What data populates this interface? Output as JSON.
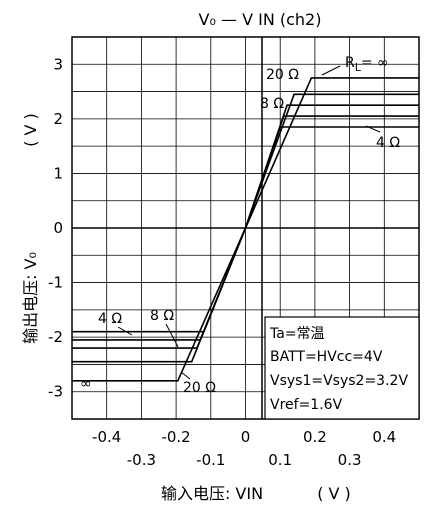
{
  "chart_data": {
    "type": "line",
    "title": "V₀ — V IN (ch2)",
    "xlabel": "输入电压: VIN",
    "xunit": "( V )",
    "ylabel": "输出电压: V₀",
    "yunit": "( V )",
    "xlim": [
      -0.5,
      0.5
    ],
    "ylim": [
      -3.5,
      3.5
    ],
    "grid": true,
    "x_ticks_upper": [
      "-0.4",
      "-0.2",
      "0",
      "0.2",
      "0.4"
    ],
    "x_ticks_lower": [
      "-0.3",
      "-0.1",
      "0.1",
      "0.3"
    ],
    "y_ticks": [
      "3",
      "2",
      "1",
      "0",
      "-1",
      "-2",
      "-3"
    ],
    "series": [
      {
        "name": "R_L = ∞",
        "x": [
          -0.5,
          -0.195,
          0.0,
          0.19,
          0.5
        ],
        "y": [
          -2.8,
          -2.8,
          0.0,
          2.75,
          2.75
        ]
      },
      {
        "name": "20 Ω",
        "x": [
          -0.5,
          -0.155,
          0.0,
          0.14,
          0.5
        ],
        "y": [
          -2.45,
          -2.45,
          0.0,
          2.45,
          2.45
        ]
      },
      {
        "name": "8 Ω",
        "x": [
          -0.5,
          -0.14,
          0.0,
          0.12,
          0.5
        ],
        "y": [
          -2.2,
          -2.2,
          0.0,
          2.25,
          2.25
        ]
      },
      {
        "name": "",
        "x": [
          -0.5,
          -0.13,
          0.0,
          0.11,
          0.5
        ],
        "y": [
          -2.05,
          -2.05,
          0.0,
          2.05,
          2.05
        ]
      },
      {
        "name": "4 Ω",
        "x": [
          -0.5,
          -0.12,
          0.0,
          0.1,
          0.5
        ],
        "y": [
          -1.9,
          -1.9,
          0.0,
          1.85,
          1.85
        ]
      }
    ],
    "annotations": {
      "rl": "R",
      "rl_sub": "L",
      "rl_eq": "= ∞",
      "upper_20": "20 Ω",
      "upper_8": "8 Ω",
      "upper_4": "4 Ω",
      "lower_4": "4 Ω",
      "lower_8": "8 Ω",
      "lower_20": "20 Ω",
      "lower_inf": "∞"
    },
    "conditions": [
      "Ta=常温",
      "BATT=HVcc=4V",
      "Vsys1=Vsys2=3.2V",
      "Vref=1.6V"
    ]
  }
}
